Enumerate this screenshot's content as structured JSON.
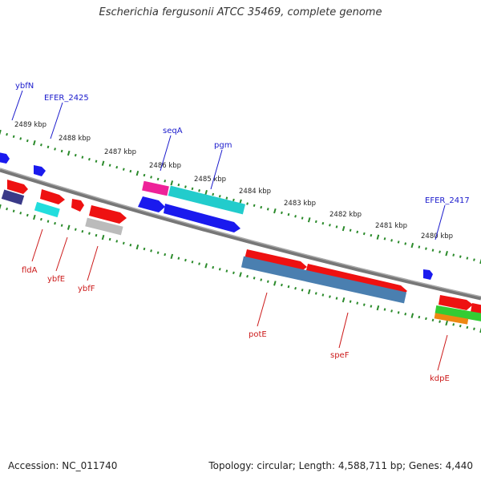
{
  "title": "Escherichia fergusonii ATCC 35469, complete genome",
  "footer": {
    "accession": "Accession: NC_011740",
    "topology": "Topology: circular; Length: 4,588,711 bp; Genes: 4,440"
  },
  "colors": {
    "backbone": "#777777",
    "tick": "#2a8a2a",
    "top_label": "#1a1acc",
    "bottom_label": "#cc1a1a",
    "ruler_text": "#222222"
  },
  "ruler": [
    {
      "label": "2489 kbp"
    },
    {
      "label": "2488 kbp"
    },
    {
      "label": "2487 kbp"
    },
    {
      "label": "2486 kbp"
    },
    {
      "label": "2485 kbp"
    },
    {
      "label": "2484 kbp"
    },
    {
      "label": "2483 kbp"
    },
    {
      "label": "2482 kbp"
    },
    {
      "label": "2481 kbp"
    },
    {
      "label": "2480 kbp"
    }
  ],
  "top_labels": [
    {
      "text": "ybfN"
    },
    {
      "text": "EFER_2425"
    },
    {
      "text": "seqA"
    },
    {
      "text": "pgm"
    },
    {
      "text": "EFER_2417"
    }
  ],
  "bottom_labels": [
    {
      "text": "fldA"
    },
    {
      "text": "ybfE"
    },
    {
      "text": "ybfF"
    },
    {
      "text": "potE"
    },
    {
      "text": "speF"
    },
    {
      "text": "kdpE"
    }
  ],
  "features": [
    {
      "name": "blue-pentagon-1",
      "color": "#1a1aee"
    },
    {
      "name": "blue-pentagon-2",
      "color": "#1a1aee"
    },
    {
      "name": "red-arrow-1",
      "color": "#ee1111"
    },
    {
      "name": "red-arrow-2",
      "color": "#ee1111"
    },
    {
      "name": "red-arrow-3",
      "color": "#ee1111"
    },
    {
      "name": "red-arrow-4",
      "color": "#ee1111"
    },
    {
      "name": "navy-bar",
      "color": "#3a3a88"
    },
    {
      "name": "cyan-bar-small",
      "color": "#22dddd"
    },
    {
      "name": "gray-bar",
      "color": "#bbbbbb"
    },
    {
      "name": "magenta-bar",
      "color": "#ee2299"
    },
    {
      "name": "cyan-bar-large",
      "color": "#22cccc"
    },
    {
      "name": "blue-arrow-left",
      "color": "#1a1aee"
    },
    {
      "name": "blue-bar-large",
      "color": "#1a1aee"
    },
    {
      "name": "red-potE",
      "color": "#ee1111"
    },
    {
      "name": "red-speF",
      "color": "#ee1111"
    },
    {
      "name": "steel-bar",
      "color": "#4a7fb0"
    },
    {
      "name": "blue-small-right",
      "color": "#1a1aee"
    },
    {
      "name": "red-right-1",
      "color": "#ee1111"
    },
    {
      "name": "red-right-2",
      "color": "#ee1111"
    },
    {
      "name": "green-bar",
      "color": "#33cc33"
    },
    {
      "name": "orange-bar",
      "color": "#ee8811"
    }
  ]
}
